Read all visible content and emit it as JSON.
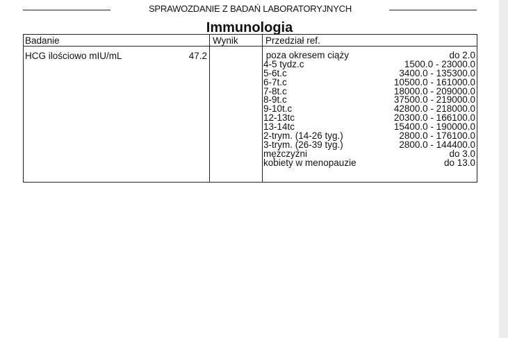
{
  "report_header": "SPRAWOZDANIE Z BADAŃ LABORATORYJNYCH",
  "section_title": "Immunologia",
  "columns": [
    "Badanie",
    "Wynik",
    "Przedział ref."
  ],
  "test": {
    "name": "HCG ilościowo mIU/mL",
    "result": "47.2"
  },
  "ranges": [
    {
      "label": " poza okresem ciąży",
      "value": "do 2.0"
    },
    {
      "label": "4-5 tydz.c",
      "value": "1500.0 - 23000.0"
    },
    {
      "label": "5-6t.c",
      "value": "3400.0 - 135300.0"
    },
    {
      "label": "6-7t.c",
      "value": "10500.0 - 161000.0"
    },
    {
      "label": "7-8t.c",
      "value": "18000.0 - 209000.0"
    },
    {
      "label": "8-9t.c",
      "value": "37500.0 - 219000.0"
    },
    {
      "label": "9-10t.c",
      "value": "42800.0 - 218000.0"
    },
    {
      "label": "12-13tc",
      "value": "20300.0 - 166100.0"
    },
    {
      "label": "13-14tc",
      "value": "15400.0 - 190000.0"
    },
    {
      "label": "2-trym. (14-26 tyg.)",
      "value": "2800.0 - 176100.0"
    },
    {
      "label": "3-trym. (26-39 tyg.)",
      "value": "2800.0 - 144400.0"
    },
    {
      "label": "mężczyźni",
      "value": "do 3.0"
    },
    {
      "label": "kobiety w menopauzie",
      "value": "do 13.0"
    }
  ]
}
